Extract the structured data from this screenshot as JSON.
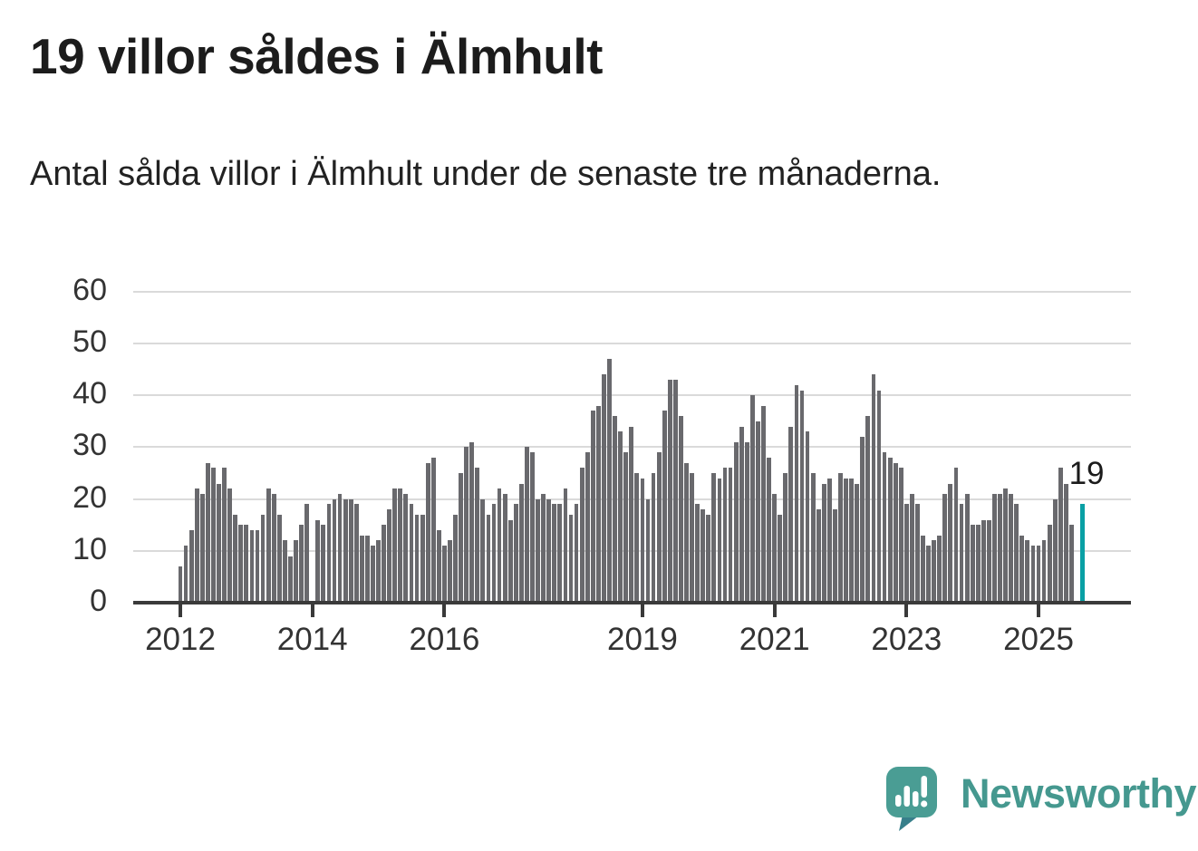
{
  "header": {
    "title": "19 villor såldes i Älmhult",
    "subtitle": "Antal sålda villor i Älmhult under de senaste tre månaderna."
  },
  "chart_data": {
    "type": "bar",
    "title": "19 villor såldes i Älmhult",
    "subtitle": "Antal sålda villor i Älmhult under de senaste tre månaderna.",
    "x_start": "2012-01",
    "frequency": "monthly",
    "ylim": [
      0,
      60
    ],
    "y_ticks": [
      0,
      10,
      20,
      30,
      40,
      50,
      60
    ],
    "x_tick_labels": [
      "2012",
      "2014",
      "2016",
      "2019",
      "2021",
      "2023",
      "2025"
    ],
    "x_tick_month_index": [
      0,
      24,
      48,
      84,
      108,
      132,
      156
    ],
    "grid": true,
    "legend": "none",
    "bar_color": "#69696d",
    "highlight_color": "#0aa0a5",
    "highlight_index": 164,
    "highlight_label": "19",
    "values": [
      7,
      11,
      14,
      22,
      21,
      27,
      26,
      23,
      26,
      22,
      17,
      15,
      15,
      14,
      14,
      17,
      22,
      21,
      17,
      12,
      9,
      12,
      15,
      19,
      0,
      16,
      15,
      19,
      20,
      21,
      20,
      20,
      19,
      13,
      13,
      11,
      12,
      15,
      18,
      22,
      22,
      21,
      19,
      17,
      17,
      27,
      28,
      14,
      11,
      12,
      17,
      25,
      30,
      31,
      26,
      20,
      17,
      19,
      22,
      21,
      16,
      19,
      23,
      30,
      29,
      20,
      21,
      20,
      19,
      19,
      22,
      17,
      19,
      26,
      29,
      37,
      38,
      44,
      47,
      36,
      33,
      29,
      34,
      25,
      24,
      20,
      25,
      29,
      37,
      43,
      43,
      36,
      27,
      25,
      19,
      18,
      17,
      25,
      24,
      26,
      26,
      31,
      34,
      31,
      40,
      35,
      38,
      28,
      21,
      17,
      25,
      34,
      42,
      41,
      33,
      25,
      18,
      23,
      24,
      18,
      25,
      24,
      24,
      23,
      32,
      36,
      44,
      41,
      29,
      28,
      27,
      26,
      19,
      21,
      19,
      13,
      11,
      12,
      13,
      21,
      23,
      26,
      19,
      21,
      15,
      15,
      16,
      16,
      21,
      21,
      22,
      21,
      19,
      13,
      12,
      11,
      11,
      12,
      15,
      20,
      26,
      23,
      15,
      0,
      19
    ]
  },
  "branding": {
    "logo_text": "Newsworthy",
    "brand_color": "#45988f",
    "icon": "newsworthy-speech-bubble-chart-icon"
  }
}
